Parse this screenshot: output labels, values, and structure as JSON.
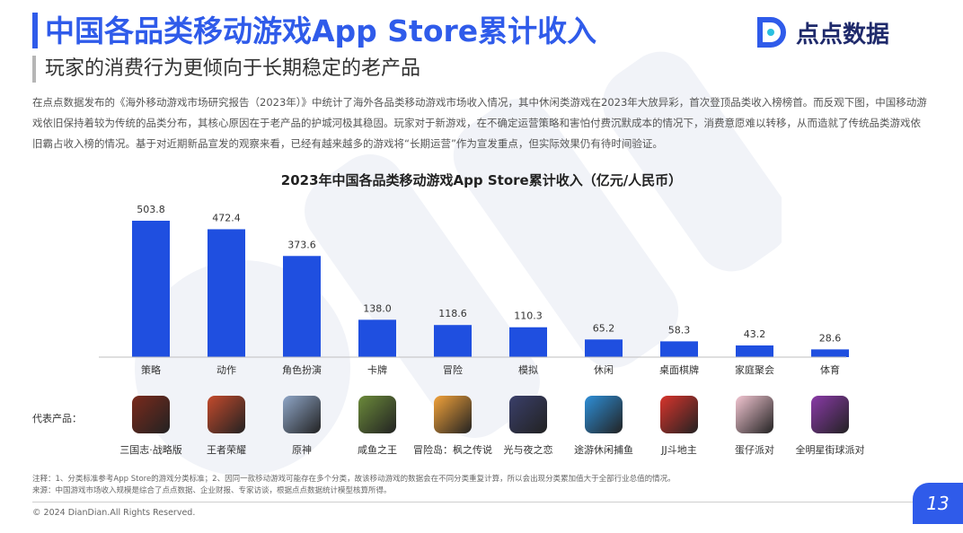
{
  "header": {
    "title": "中国各品类移动游戏App Store累计收入",
    "subtitle": "玩家的消费行为更倾向于长期稳定的老产品",
    "logo_text": "点点数据"
  },
  "intro_text": "在点点数据发布的《海外移动游戏市场研究报告（2023年）》中统计了海外各品类移动游戏市场收入情况，其中休闲类游戏在2023年大放异彩，首次登顶品类收入榜榜首。而反观下图，中国移动游戏依旧保持着较为传统的品类分布，其核心原因在于老产品的护城河极其稳固。玩家对于新游戏，在不确定运营策略和害怕付费沉默成本的情况下，消费意愿难以转移，从而造就了传统品类游戏依旧霸占收入榜的情况。基于对近期新品宣发的观察来看，已经有越来越多的游戏将“长期运营”作为宣发重点，但实际效果仍有待时间验证。",
  "chart_data": {
    "type": "bar",
    "title": "2023年中国各品类移动游戏App Store累计收入（亿元/人民币）",
    "categories": [
      "策略",
      "动作",
      "角色扮演",
      "卡牌",
      "冒险",
      "模拟",
      "休闲",
      "桌面棋牌",
      "家庭聚会",
      "体育"
    ],
    "values": [
      503.8,
      472.4,
      373.6,
      138.0,
      118.6,
      110.3,
      65.2,
      58.3,
      43.2,
      28.6
    ],
    "value_labels": [
      "503.8",
      "472.4",
      "373.6",
      "138.0",
      "118.6",
      "110.3",
      "65.2",
      "58.3",
      "43.2",
      "28.6"
    ],
    "ylim": [
      0,
      503.8
    ],
    "xlabel": "",
    "ylabel": "",
    "grid": false,
    "bar_color": "#1f4fe0"
  },
  "products": {
    "label": "代表产品：",
    "items": [
      {
        "name": "三国志·战略版",
        "icon": "sanguozhi-icon",
        "color": "#7a2a1c"
      },
      {
        "name": "王者荣耀",
        "icon": "wangzhe-icon",
        "color": "#c44a2c"
      },
      {
        "name": "原神",
        "icon": "yuanshen-icon",
        "color": "#8fa6c8"
      },
      {
        "name": "咸鱼之王",
        "icon": "xianyu-icon",
        "color": "#6b8a3a"
      },
      {
        "name": "冒险岛：枫之传说",
        "icon": "maoxiandao-icon",
        "color": "#f2a23a"
      },
      {
        "name": "光与夜之恋",
        "icon": "guangyuye-icon",
        "color": "#3a3f6a"
      },
      {
        "name": "途游休闲捕鱼",
        "icon": "buyu-icon",
        "color": "#2e8fd8"
      },
      {
        "name": "JJ斗地主",
        "icon": "doudizhu-icon",
        "color": "#d8342c"
      },
      {
        "name": "蛋仔派对",
        "icon": "danzai-icon",
        "color": "#f3c6d2"
      },
      {
        "name": "全明星街球派对",
        "icon": "jieqiu-icon",
        "color": "#8a3aa8"
      }
    ]
  },
  "notes": {
    "line1": "注释：1、分类标准参考App Store的游戏分类标准；2、因同一款移动游戏可能存在多个分类，故该移动游戏的数据会在不同分类重复计算，所以会出现分类累加值大于全部行业总值的情况。",
    "line2": "来源：中国游戏市场收入规模是综合了点点数据、企业财报、专家访谈，根据点点数据统计模型核算所得。"
  },
  "footer": {
    "copyright": "© 2024 DianDian.All Rights Reserved.",
    "page_number": "13"
  },
  "colors": {
    "accent": "#2f5bea",
    "bar": "#1f4fe0",
    "watermark": "#eef1f7"
  }
}
